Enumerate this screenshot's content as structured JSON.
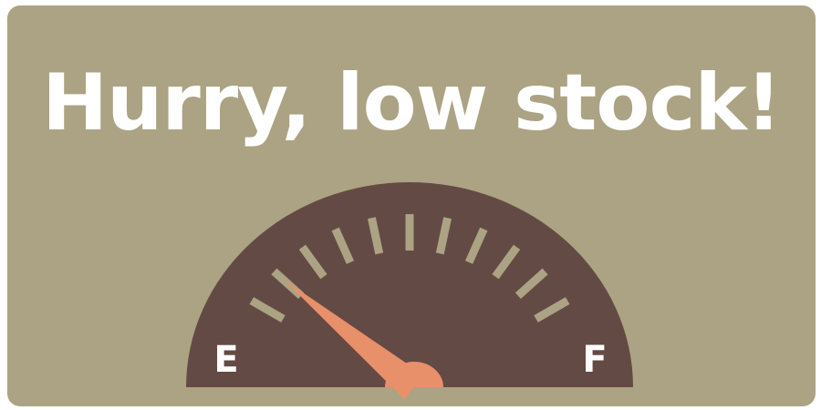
{
  "headline": "Hurry, low stock!",
  "gauge": {
    "empty_label": "E",
    "full_label": "F",
    "level_fraction": 0.22,
    "tick_count": 11
  },
  "colors": {
    "background": "#aba383",
    "dial": "#644a44",
    "ticks": "#aba383",
    "needle": "#e8906a",
    "text": "#ffffff"
  }
}
